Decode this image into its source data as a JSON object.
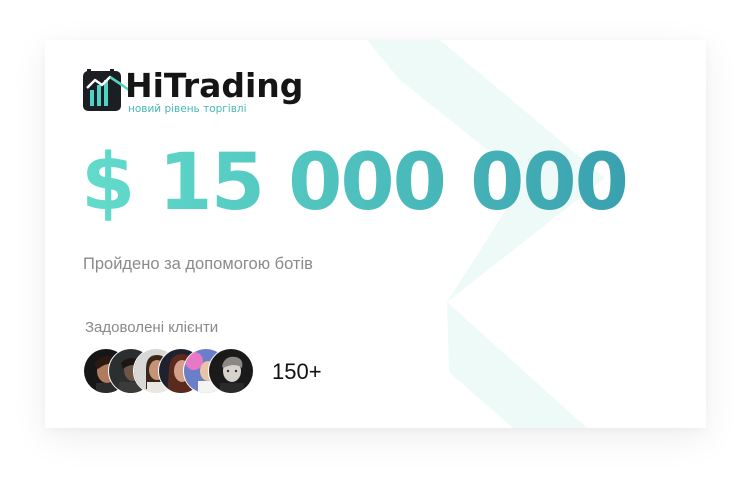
{
  "brand": {
    "name": "HiTrading",
    "tagline": "новий рівень торгівлі",
    "logo_icon": "trading-chart-logo-icon"
  },
  "stats": {
    "amount": "$ 15 000 000",
    "description": "Пройдено за допомогою ботів"
  },
  "clients": {
    "label": "Задоволені клієнти",
    "count": "150+",
    "avatar_count": 6
  },
  "colors": {
    "accent_start": "#62dccb",
    "accent_end": "#3aa0af",
    "decor": "#eefaf8",
    "text_muted": "#8a8a8a",
    "text_dark": "#111111"
  }
}
